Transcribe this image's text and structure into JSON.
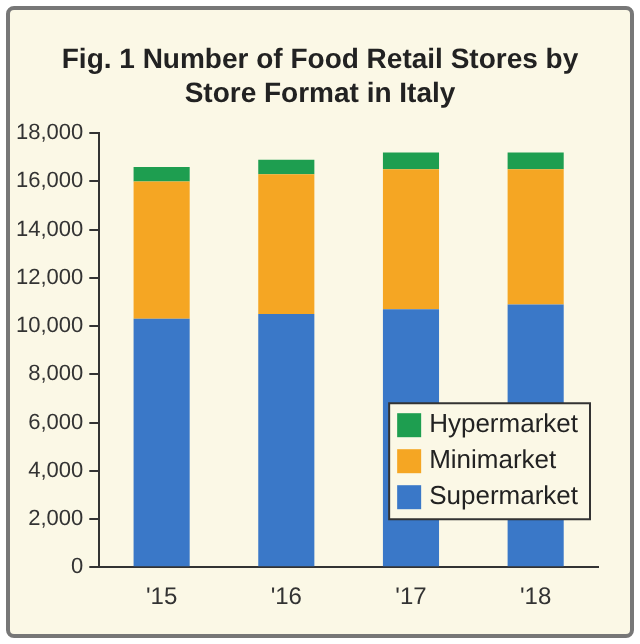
{
  "chart_data": {
    "type": "bar",
    "title": "Fig. 1  Number of Food Retail Stores by Store Format in Italy",
    "categories": [
      "'15",
      "'16",
      "'17",
      "'18"
    ],
    "stacked": true,
    "series": [
      {
        "name": "Supermarket",
        "color": "#3a78c8",
        "values": [
          10300,
          10500,
          10700,
          10900
        ]
      },
      {
        "name": "Minimarket",
        "color": "#f5a623",
        "values": [
          5700,
          5800,
          5800,
          5600
        ]
      },
      {
        "name": "Hypermarket",
        "color": "#1e9e50",
        "values": [
          600,
          600,
          700,
          700
        ]
      }
    ],
    "ylim": [
      0,
      18000
    ],
    "yticks": [
      {
        "value": 0,
        "label": "0"
      },
      {
        "value": 2000,
        "label": "2,000"
      },
      {
        "value": 4000,
        "label": "4,000"
      },
      {
        "value": 6000,
        "label": "6,000"
      },
      {
        "value": 8000,
        "label": "8,000"
      },
      {
        "value": 10000,
        "label": "10,000"
      },
      {
        "value": 12000,
        "label": "12,000"
      },
      {
        "value": 14000,
        "label": "14,000"
      },
      {
        "value": 16000,
        "label": "16,000"
      },
      {
        "value": 18000,
        "label": "18,000"
      }
    ],
    "grid": false,
    "legend": "bottom right"
  }
}
